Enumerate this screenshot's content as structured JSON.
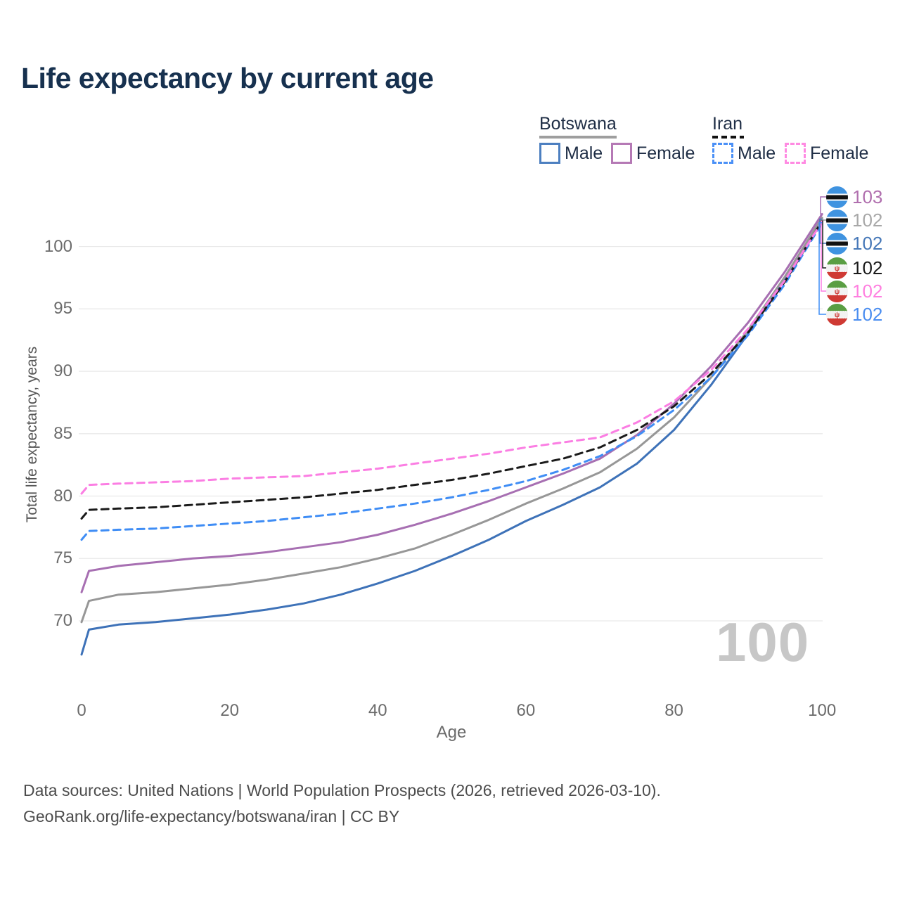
{
  "title": "Life expectancy by current age",
  "legend": {
    "groups": [
      {
        "label": "Botswana",
        "line_style": "solid",
        "underline_color": "#9e9e9e",
        "items": [
          {
            "label": "Male",
            "color": "#4c7fc0",
            "style": "solid"
          },
          {
            "label": "Female",
            "color": "#b579b5",
            "style": "solid"
          }
        ]
      },
      {
        "label": "Iran",
        "line_style": "dashed",
        "underline_color": "#111111",
        "items": [
          {
            "label": "Male",
            "color": "#4a90f7",
            "style": "dashed"
          },
          {
            "label": "Female",
            "color": "#ff8ae2",
            "style": "dashed"
          }
        ]
      }
    ]
  },
  "chart_data": {
    "type": "line",
    "title": "Life expectancy by current age",
    "xlabel": "Age",
    "ylabel": "Total life expectancy, years",
    "xticks": [
      0,
      20,
      40,
      60,
      80,
      100
    ],
    "yticks": [
      70,
      75,
      80,
      85,
      90,
      95,
      100
    ],
    "xlim": [
      0,
      100
    ],
    "ylim": [
      66,
      104
    ],
    "grid": true,
    "legend_position": "top-right",
    "x": [
      0,
      1,
      5,
      10,
      15,
      20,
      25,
      30,
      35,
      40,
      45,
      50,
      55,
      60,
      65,
      70,
      75,
      80,
      85,
      90,
      95,
      100
    ],
    "series": [
      {
        "name": "Botswana Female",
        "country": "Botswana",
        "sex": "Female",
        "dash": false,
        "z": 3,
        "color": "#a76fb2",
        "end_label": "103",
        "end_label_color": "#b06fae",
        "flag": "botswana",
        "values": [
          72.3,
          74.0,
          74.4,
          74.7,
          75.0,
          75.2,
          75.5,
          75.9,
          76.3,
          76.9,
          77.7,
          78.6,
          79.6,
          80.7,
          81.8,
          83.0,
          84.9,
          87.4,
          90.4,
          93.9,
          98.0,
          102.6
        ]
      },
      {
        "name": "Botswana Both sexes",
        "country": "Botswana",
        "sex": "Both",
        "dash": false,
        "z": 2,
        "color": "#979797",
        "end_label": "102",
        "end_label_color": "#a8a8a8",
        "flag": "botswana",
        "values": [
          69.9,
          71.6,
          72.1,
          72.3,
          72.6,
          72.9,
          73.3,
          73.8,
          74.3,
          75.0,
          75.8,
          76.9,
          78.1,
          79.4,
          80.6,
          81.9,
          83.8,
          86.3,
          89.5,
          93.3,
          97.6,
          102.3
        ]
      },
      {
        "name": "Botswana Male",
        "country": "Botswana",
        "sex": "Male",
        "dash": false,
        "z": 1,
        "color": "#3e72b8",
        "end_label": "102",
        "end_label_color": "#4678b8",
        "flag": "botswana",
        "values": [
          67.3,
          69.3,
          69.7,
          69.9,
          70.2,
          70.5,
          70.9,
          71.4,
          72.1,
          73.0,
          74.0,
          75.2,
          76.5,
          78.0,
          79.3,
          80.7,
          82.6,
          85.3,
          88.9,
          93.0,
          97.4,
          102.2
        ]
      },
      {
        "name": "Iran Both sexes",
        "country": "Iran",
        "sex": "Both",
        "dash": true,
        "z": 5,
        "color": "#1a1a1a",
        "end_label": "102",
        "end_label_color": "#1a1a1a",
        "flag": "iran",
        "values": [
          78.2,
          78.9,
          79.0,
          79.1,
          79.3,
          79.5,
          79.7,
          79.9,
          80.2,
          80.5,
          80.9,
          81.3,
          81.8,
          82.4,
          83.0,
          83.9,
          85.3,
          87.2,
          89.8,
          93.1,
          97.2,
          102.05
        ]
      },
      {
        "name": "Iran Female",
        "country": "Iran",
        "sex": "Female",
        "dash": true,
        "z": 6,
        "color": "#fb7ee3",
        "end_label": "102",
        "end_label_color": "#ff80e0",
        "flag": "iran",
        "values": [
          80.2,
          80.9,
          81.0,
          81.1,
          81.2,
          81.4,
          81.5,
          81.6,
          81.9,
          82.2,
          82.6,
          83.0,
          83.4,
          83.9,
          84.3,
          84.7,
          85.9,
          87.6,
          90.1,
          93.4,
          97.3,
          102.0
        ]
      },
      {
        "name": "Iran Male",
        "country": "Iran",
        "sex": "Male",
        "dash": true,
        "z": 4,
        "color": "#3f8df5",
        "end_label": "102",
        "end_label_color": "#4a8df0",
        "flag": "iran",
        "values": [
          76.5,
          77.2,
          77.3,
          77.4,
          77.6,
          77.8,
          78.0,
          78.3,
          78.6,
          79.0,
          79.4,
          79.9,
          80.5,
          81.2,
          82.1,
          83.2,
          84.8,
          86.9,
          89.5,
          92.9,
          97.0,
          101.9
        ]
      }
    ]
  },
  "axes": {
    "x_title": "Age",
    "y_title": "Total life expectancy, years"
  },
  "age_counter": "100",
  "footer": {
    "line1": "Data sources: United Nations | World Population Prospects (2026, retrieved 2026-03-10).",
    "line2": "GeoRank.org/life-expectancy/botswana/iran | CC BY"
  },
  "colors": {
    "title_text": "#17314f",
    "grid_line": "#e9e9e9",
    "tick_text": "#6b6b6b",
    "watermark_text": "#c7c7c7",
    "footer_text": "#4c4c4c",
    "botswana_flag_blue": "#3f93e0",
    "iran_flag_green": "#5a9e43",
    "iran_flag_red": "#cf3a34"
  }
}
